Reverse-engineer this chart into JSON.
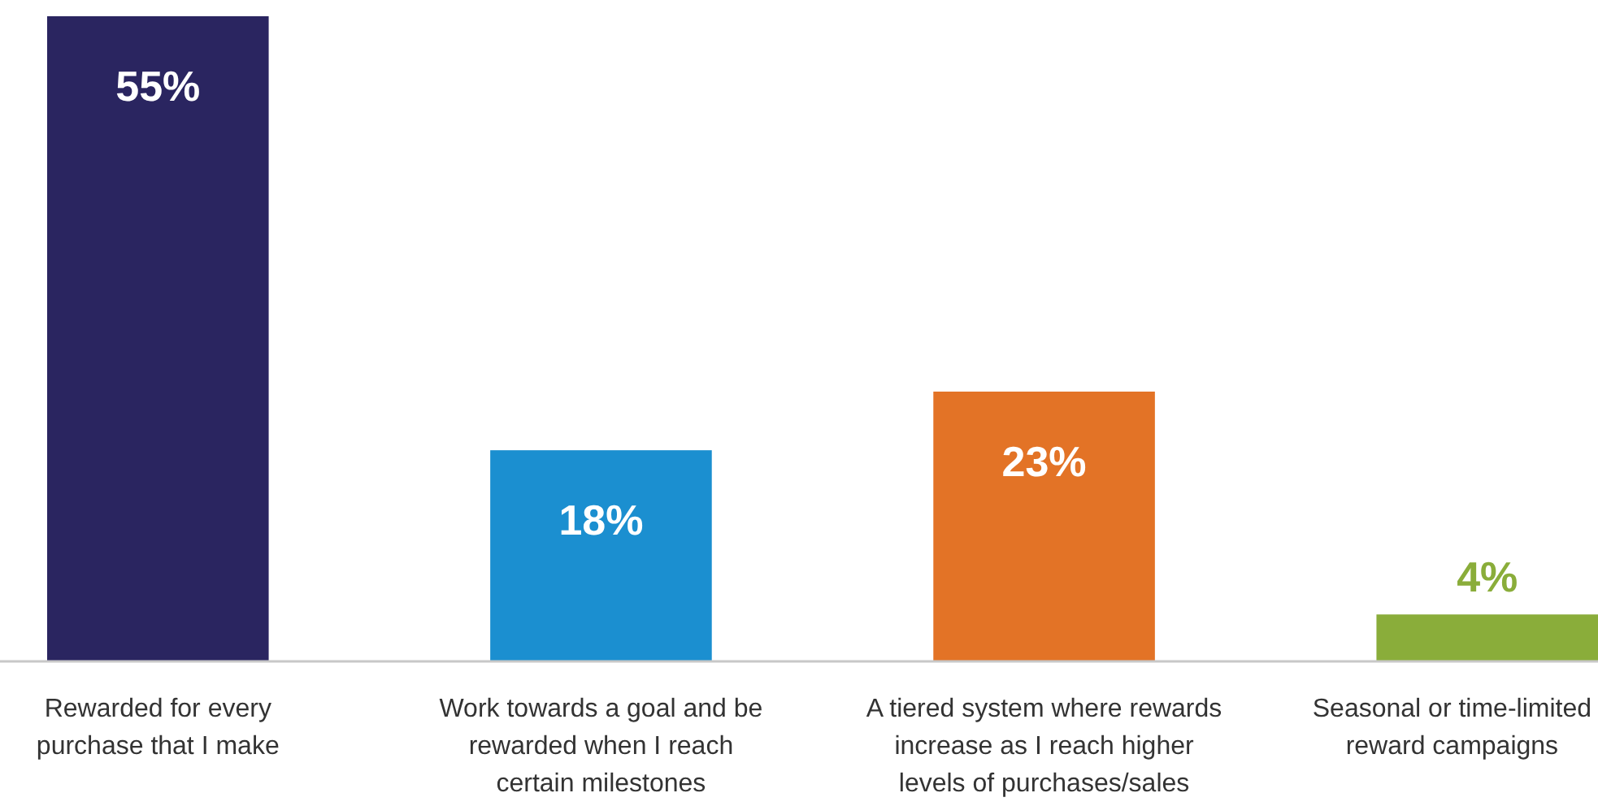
{
  "chart_data": {
    "type": "bar",
    "categories": [
      "Rewarded for every purchase that I make",
      "Work towards a goal and be rewarded when I reach certain milestones",
      "A tiered system where rewards increase as I reach higher levels of purchases/sales",
      "Seasonal or time-limited reward campaigns"
    ],
    "values": [
      55,
      18,
      23,
      4
    ],
    "colors": [
      "#2a2560",
      "#1b8fd0",
      "#e37326",
      "#8aad3a"
    ],
    "value_labels": [
      "55%",
      "18%",
      "23%",
      "4%"
    ]
  }
}
